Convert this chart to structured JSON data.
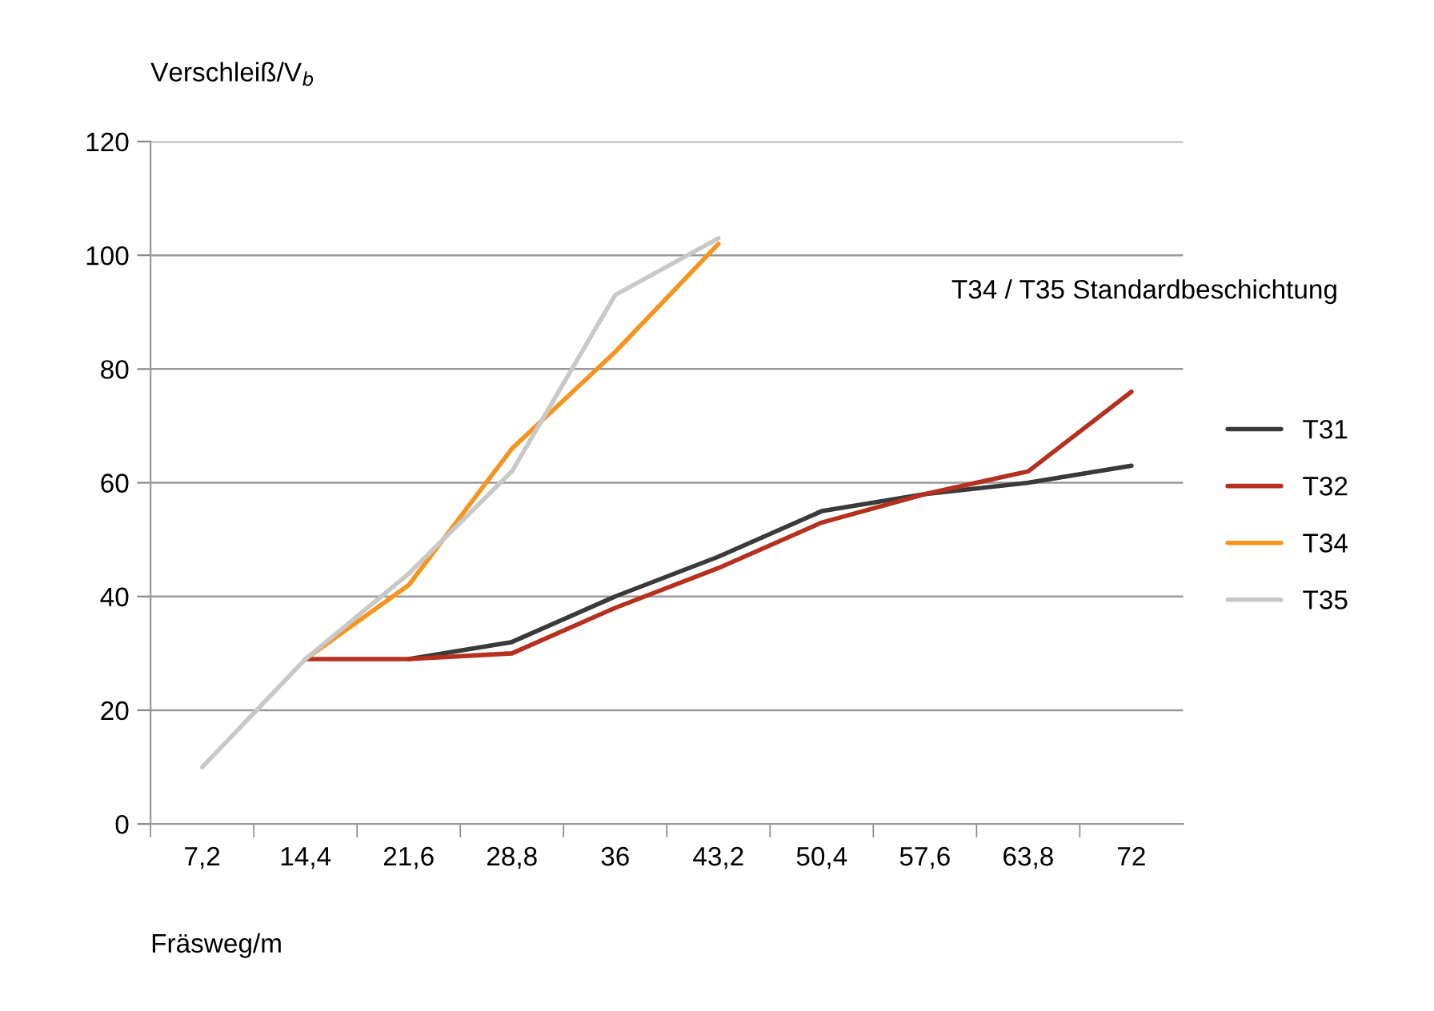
{
  "chart_data": {
    "type": "line",
    "ylabel": "Verschleiß/V$_{b}$",
    "xlabel": "Fräsweg/m",
    "categories": [
      "7,2",
      "14,4",
      "21,6",
      "28,8",
      "36",
      "43,2",
      "50,4",
      "57,6",
      "63,8",
      "72"
    ],
    "series": [
      {
        "name": "T31",
        "color": "#3a3a3a",
        "values": [
          null,
          null,
          29,
          32,
          40,
          47,
          55,
          58,
          60,
          63
        ]
      },
      {
        "name": "T32",
        "color": "#b5301e",
        "values": [
          null,
          29,
          29,
          30,
          38,
          45,
          53,
          58,
          62,
          76
        ]
      },
      {
        "name": "T34",
        "color": "#f7941d",
        "values": [
          null,
          29,
          42,
          66,
          83,
          102,
          null,
          null,
          null,
          null
        ]
      },
      {
        "name": "T35",
        "color": "#c8c8c8",
        "values": [
          10,
          29,
          44,
          62,
          93,
          103,
          null,
          null,
          null,
          null
        ]
      }
    ],
    "annotations": [
      "T34 / T35 Standardbeschichtung"
    ],
    "ylim": [
      0,
      120
    ],
    "yticks": [
      0,
      20,
      40,
      60,
      80,
      100,
      120
    ],
    "grid": "y",
    "legend": "right",
    "marker": "none",
    "line_style": "solid"
  }
}
